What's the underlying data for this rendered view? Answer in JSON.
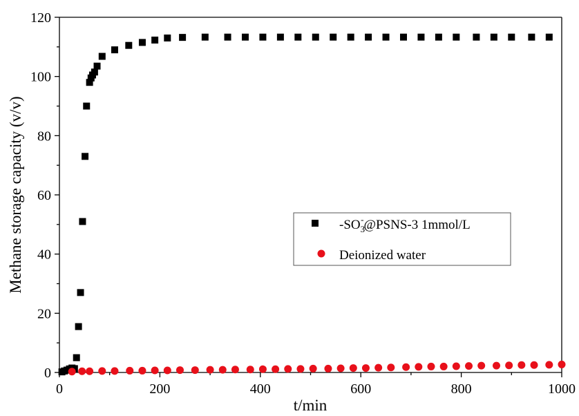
{
  "chart_data": {
    "type": "scatter",
    "xlabel": "t/min",
    "ylabel": "Methane storage capacity (v/v)",
    "xlim": [
      0,
      1000
    ],
    "ylim": [
      0,
      120
    ],
    "xticks": [
      "0",
      "200",
      "400",
      "600",
      "800",
      "1000"
    ],
    "yticks": [
      "0",
      "20",
      "40",
      "60",
      "80",
      "100",
      "120"
    ],
    "grid": false,
    "legend_position": "right-middle",
    "series": [
      {
        "name": "-SO3-@PSNS-3 1mmol/L",
        "legend_parts": {
          "prefix": "-SO",
          "sub": "3",
          "sup": "-",
          "suffix": "@PSNS-3 1mmol/L"
        },
        "marker": "square",
        "color": "#000000",
        "x": [
          5,
          10,
          15,
          20,
          25,
          30,
          34,
          38,
          42,
          46,
          51,
          54,
          60,
          63,
          66,
          70,
          75,
          85,
          110,
          138,
          165,
          190,
          215,
          245,
          290,
          335,
          370,
          405,
          440,
          475,
          510,
          545,
          580,
          615,
          650,
          685,
          720,
          755,
          790,
          830,
          865,
          900,
          940,
          975
        ],
        "y": [
          0.2,
          0.5,
          0.8,
          1.2,
          1.5,
          1.3,
          5.0,
          15.5,
          27.0,
          51.0,
          73.0,
          90.0,
          98.0,
          99.5,
          100.5,
          101.5,
          103.5,
          106.8,
          109.0,
          110.5,
          111.5,
          112.3,
          113.0,
          113.2,
          113.3,
          113.3,
          113.3,
          113.3,
          113.3,
          113.3,
          113.3,
          113.3,
          113.3,
          113.3,
          113.3,
          113.3,
          113.3,
          113.3,
          113.3,
          113.3,
          113.3,
          113.3,
          113.3,
          113.3
        ]
      },
      {
        "name": "Deionized water",
        "marker": "circle",
        "color": "#e8101a",
        "x": [
          25,
          45,
          60,
          85,
          110,
          140,
          165,
          190,
          215,
          240,
          270,
          300,
          325,
          350,
          380,
          405,
          430,
          455,
          480,
          505,
          535,
          560,
          585,
          610,
          635,
          660,
          690,
          715,
          740,
          765,
          790,
          815,
          840,
          870,
          895,
          920,
          945,
          975,
          1000
        ],
        "y": [
          0.3,
          0.4,
          0.4,
          0.5,
          0.5,
          0.6,
          0.6,
          0.7,
          0.7,
          0.8,
          0.8,
          0.9,
          0.9,
          1.0,
          1.0,
          1.1,
          1.1,
          1.2,
          1.2,
          1.3,
          1.3,
          1.4,
          1.5,
          1.5,
          1.6,
          1.7,
          1.8,
          1.9,
          2.0,
          2.0,
          2.1,
          2.2,
          2.3,
          2.3,
          2.4,
          2.5,
          2.5,
          2.6,
          2.7
        ]
      }
    ]
  }
}
